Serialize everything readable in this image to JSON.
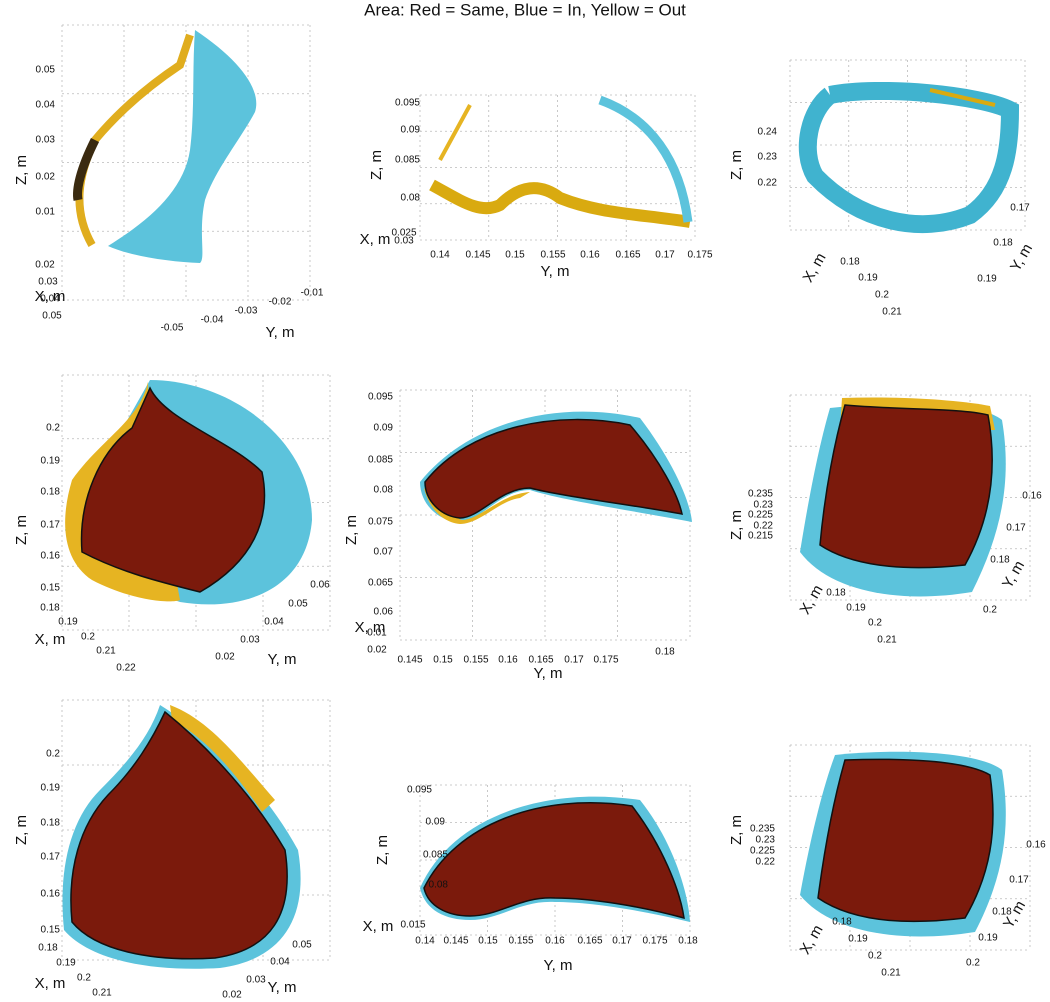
{
  "title": "Area: Red = Same, Blue = In, Yellow = Out",
  "panels": [
    {
      "z_label": "Z, m",
      "x_label": "X, m",
      "y_label": "Y, m",
      "z_ticks": [
        "0.05",
        "0.04",
        "0.03",
        "0.02",
        "0.01"
      ],
      "x_ticks": [
        "0.02",
        "0.03",
        "0.04",
        "0.05"
      ],
      "y_ticks": [
        "-0.05",
        "-0.04",
        "-0.03",
        "-0.02",
        "-0.01"
      ]
    },
    {
      "z_label": "Z, m",
      "x_label": "X, m",
      "y_label": "Y, m",
      "z_ticks": [
        "0.095",
        "0.09",
        "0.085",
        "0.08"
      ],
      "x_ticks": [
        "0.03",
        "0.025"
      ],
      "y_ticks": [
        "0.14",
        "0.145",
        "0.15",
        "0.155",
        "0.16",
        "0.165",
        "0.17",
        "0.175"
      ]
    },
    {
      "z_label": "Z, m",
      "x_label": "X, m",
      "y_label": "Y, m",
      "z_ticks": [
        "0.24",
        "0.23",
        "0.22"
      ],
      "x_ticks": [
        "0.18",
        "0.19",
        "0.2",
        "0.21"
      ],
      "y_ticks": [
        "0.17",
        "0.18",
        "0.19"
      ]
    },
    {
      "z_label": "Z, m",
      "x_label": "X, m",
      "y_label": "Y, m",
      "z_ticks": [
        "0.2",
        "0.19",
        "0.18",
        "0.17",
        "0.16",
        "0.15"
      ],
      "x_ticks": [
        "0.18",
        "0.19",
        "0.2",
        "0.21",
        "0.22"
      ],
      "y_ticks": [
        "0.02",
        "0.03",
        "0.04",
        "0.05",
        "0.06"
      ]
    },
    {
      "z_label": "Z, m",
      "x_label": "X, m",
      "y_label": "Y, m",
      "z_ticks": [
        "0.095",
        "0.09",
        "0.085",
        "0.08",
        "0.075",
        "0.07",
        "0.065",
        "0.06"
      ],
      "x_ticks": [
        "0.01",
        "0.02"
      ],
      "y_ticks": [
        "0.145",
        "0.15",
        "0.155",
        "0.16",
        "0.165",
        "0.17",
        "0.175",
        "0.18"
      ]
    },
    {
      "z_label": "Z, m",
      "x_label": "X, m",
      "y_label": "Y, m",
      "z_ticks": [
        "0.235",
        "0.23",
        "0.225",
        "0.22",
        "0.215"
      ],
      "x_ticks": [
        "0.18",
        "0.19",
        "0.2",
        "0.21"
      ],
      "y_ticks": [
        "0.16",
        "0.17",
        "0.18",
        "0.2"
      ]
    },
    {
      "z_label": "Z, m",
      "x_label": "X, m",
      "y_label": "Y, m",
      "z_ticks": [
        "0.2",
        "0.19",
        "0.18",
        "0.17",
        "0.16",
        "0.15"
      ],
      "x_ticks": [
        "0.18",
        "0.19",
        "0.2",
        "0.21"
      ],
      "y_ticks": [
        "0.02",
        "0.03",
        "0.04",
        "0.05"
      ]
    },
    {
      "z_label": "Z, m",
      "x_label": "X, m",
      "y_label": "Y, m",
      "z_ticks": [
        "0.095",
        "0.09",
        "0.085",
        "0.08"
      ],
      "x_ticks": [
        "0.015"
      ],
      "y_ticks": [
        "0.14",
        "0.145",
        "0.15",
        "0.155",
        "0.16",
        "0.165",
        "0.17",
        "0.175",
        "0.18"
      ]
    },
    {
      "z_label": "Z, m",
      "x_label": "X, m",
      "y_label": "Y, m",
      "z_ticks": [
        "0.235",
        "0.23",
        "0.225",
        "0.22"
      ],
      "x_ticks": [
        "0.18",
        "0.19",
        "0.2",
        "0.21"
      ],
      "y_ticks": [
        "0.16",
        "0.17",
        "0.18",
        "0.19",
        "0.2"
      ]
    }
  ]
}
